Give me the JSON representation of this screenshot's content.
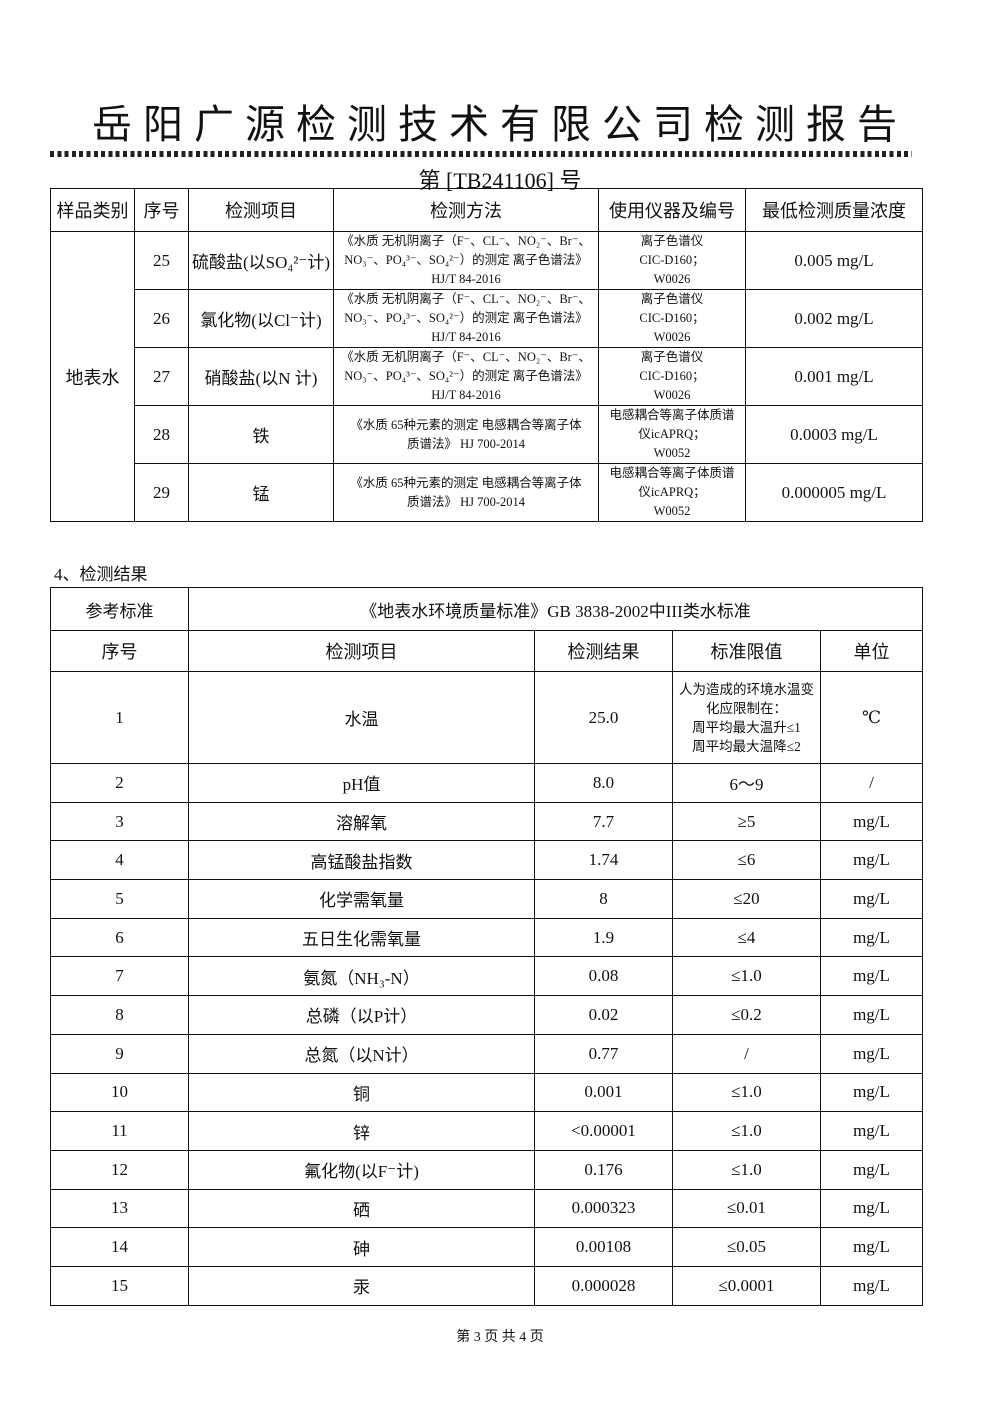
{
  "header": {
    "company_title": "岳阳广源检测技术有限公司检测报告",
    "report_number": "第 [TB241106] 号"
  },
  "method_table": {
    "columns": [
      "样品类别",
      "序号",
      "检测项目",
      "检测方法",
      "使用仪器及编号",
      "最低检测质量浓度"
    ],
    "sample_category": "地表水",
    "rows": [
      {
        "no": "25",
        "item": "硫酸盐(以SO₄²⁻计)",
        "method": "《水质 无机阴离子（F⁻、CL⁻、NO₂⁻、Br⁻、\nNO₃⁻、PO₄³⁻、SO₄²⁻）的测定 离子色谱法》\nHJ/T 84-2016",
        "instrument": "离子色谱仪\nCIC-D160；\nW0026",
        "limit": "0.005 mg/L"
      },
      {
        "no": "26",
        "item": "氯化物(以Cl⁻计)",
        "method": "《水质 无机阴离子（F⁻、CL⁻、NO₂⁻、Br⁻、\nNO₃⁻、PO₄³⁻、SO₄²⁻）的测定 离子色谱法》\nHJ/T 84-2016",
        "instrument": "离子色谱仪\nCIC-D160；\nW0026",
        "limit": "0.002 mg/L"
      },
      {
        "no": "27",
        "item": "硝酸盐(以N 计)",
        "method": "《水质 无机阴离子（F⁻、CL⁻、NO₂⁻、Br⁻、\nNO₃⁻、PO₄³⁻、SO₄²⁻）的测定 离子色谱法》\nHJ/T 84-2016",
        "instrument": "离子色谱仪\nCIC-D160；\nW0026",
        "limit": "0.001 mg/L"
      },
      {
        "no": "28",
        "item": "铁",
        "method": "《水质 65种元素的测定 电感耦合等离子体\n质谱法》 HJ 700-2014",
        "instrument": "电感耦合等离子体质谱\n仪icAPRQ；\nW0052",
        "limit": "0.0003 mg/L"
      },
      {
        "no": "29",
        "item": "锰",
        "method": "《水质 65种元素的测定 电感耦合等离子体\n质谱法》 HJ 700-2014",
        "instrument": "电感耦合等离子体质谱\n仪icAPRQ；\nW0052",
        "limit": "0.000005 mg/L"
      }
    ]
  },
  "results_section": {
    "heading": "4、检测结果",
    "reference_label": "参考标准",
    "reference_value": "《地表水环境质量标准》GB 3838-2002中III类水标准",
    "columns": [
      "序号",
      "检测项目",
      "检测结果",
      "标准限值",
      "单位"
    ],
    "rows": [
      {
        "no": "1",
        "item": "水温",
        "result": "25.0",
        "limit": "人为造成的环境水温变\n化应限制在：\n周平均最大温升≤1\n周平均最大温降≤2",
        "unit": "℃"
      },
      {
        "no": "2",
        "item": "pH值",
        "result": "8.0",
        "limit": "6～9",
        "unit": "/"
      },
      {
        "no": "3",
        "item": "溶解氧",
        "result": "7.7",
        "limit": "≥5",
        "unit": "mg/L"
      },
      {
        "no": "4",
        "item": "高锰酸盐指数",
        "result": "1.74",
        "limit": "≤6",
        "unit": "mg/L"
      },
      {
        "no": "5",
        "item": "化学需氧量",
        "result": "8",
        "limit": "≤20",
        "unit": "mg/L"
      },
      {
        "no": "6",
        "item": "五日生化需氧量",
        "result": "1.9",
        "limit": "≤4",
        "unit": "mg/L"
      },
      {
        "no": "7",
        "item": "氨氮（NH₃-N）",
        "result": "0.08",
        "limit": "≤1.0",
        "unit": "mg/L"
      },
      {
        "no": "8",
        "item": "总磷（以P计）",
        "result": "0.02",
        "limit": "≤0.2",
        "unit": "mg/L"
      },
      {
        "no": "9",
        "item": "总氮（以N计）",
        "result": "0.77",
        "limit": "/",
        "unit": "mg/L"
      },
      {
        "no": "10",
        "item": "铜",
        "result": "0.001",
        "limit": "≤1.0",
        "unit": "mg/L"
      },
      {
        "no": "11",
        "item": "锌",
        "result": "<0.00001",
        "limit": "≤1.0",
        "unit": "mg/L"
      },
      {
        "no": "12",
        "item": "氟化物(以F⁻计)",
        "result": "0.176",
        "limit": "≤1.0",
        "unit": "mg/L"
      },
      {
        "no": "13",
        "item": "硒",
        "result": "0.000323",
        "limit": "≤0.01",
        "unit": "mg/L"
      },
      {
        "no": "14",
        "item": "砷",
        "result": "0.00108",
        "limit": "≤0.05",
        "unit": "mg/L"
      },
      {
        "no": "15",
        "item": "汞",
        "result": "0.000028",
        "limit": "≤0.0001",
        "unit": "mg/L"
      }
    ]
  },
  "footer": {
    "page_info": "第 3 页   共 4 页"
  }
}
